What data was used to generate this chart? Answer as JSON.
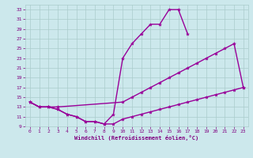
{
  "curve_top_x": [
    0,
    1,
    2,
    3,
    4,
    5,
    6,
    7,
    8,
    9,
    10,
    11,
    12,
    13,
    14,
    15,
    16,
    17
  ],
  "curve_top_y": [
    14,
    13,
    13,
    12.5,
    11.5,
    11,
    10,
    10,
    9.5,
    11.5,
    23,
    26,
    28,
    30,
    30,
    33,
    33,
    28
  ],
  "curve_mid_x": [
    0,
    1,
    2,
    3,
    10,
    11,
    12,
    13,
    14,
    15,
    16,
    17,
    18,
    19,
    20,
    21,
    22,
    23
  ],
  "curve_mid_y": [
    14,
    13,
    13,
    13,
    14,
    15,
    16,
    17,
    18,
    19,
    20,
    21,
    22,
    23,
    24,
    25,
    26,
    17
  ],
  "curve_bot_x": [
    0,
    1,
    2,
    3,
    4,
    5,
    6,
    7,
    8,
    9,
    10,
    11,
    12,
    13,
    14,
    15,
    16,
    17,
    18,
    19,
    20,
    21,
    22,
    23
  ],
  "curve_bot_y": [
    14,
    13,
    13,
    12.5,
    11.5,
    11,
    10,
    10,
    9.5,
    9.5,
    10.5,
    11,
    11.5,
    12,
    12.5,
    13,
    13.5,
    14,
    14.5,
    15,
    15.5,
    16,
    16.5,
    17
  ],
  "xlabel": "Windchill (Refroidissement éolien,°C)",
  "xlim": [
    -0.5,
    23.5
  ],
  "ylim": [
    9,
    34
  ],
  "yticks": [
    9,
    11,
    13,
    15,
    17,
    19,
    21,
    23,
    25,
    27,
    29,
    31,
    33
  ],
  "xticks": [
    0,
    1,
    2,
    3,
    4,
    5,
    6,
    7,
    8,
    9,
    10,
    11,
    12,
    13,
    14,
    15,
    16,
    17,
    18,
    19,
    20,
    21,
    22,
    23
  ],
  "bg_color": "#cce8ec",
  "grid_color": "#aacccc",
  "line_color": "#990099",
  "xlabel_color": "#800080",
  "tick_color": "#800080"
}
